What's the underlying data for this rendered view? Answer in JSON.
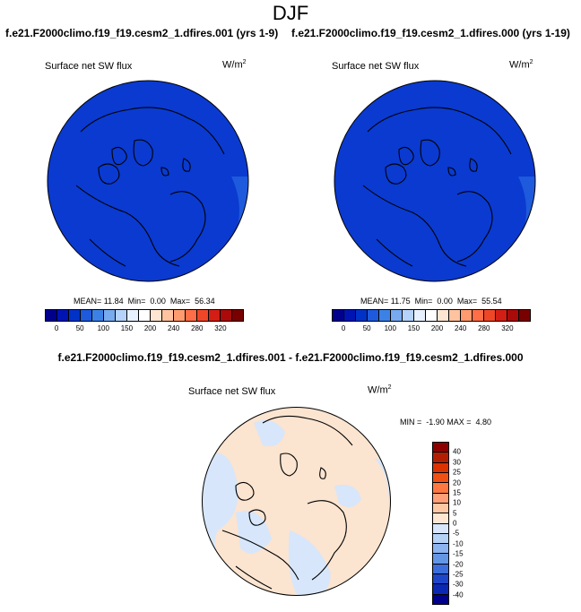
{
  "title": "DJF",
  "panels": [
    {
      "case_title": "f.e21.F2000climo.f19_f19.cesm2_1.dfires.001 (yrs 1-9)",
      "variable": "Surface net SW flux",
      "units": "W/m",
      "units_exp": "2",
      "stats": "MEAN= 11.84  Min=  0.00  Max=  56.34"
    },
    {
      "case_title": "f.e21.F2000climo.f19_f19.cesm2_1.dfires.000 (yrs 1-19)",
      "variable": "Surface net SW flux",
      "units": "W/m",
      "units_exp": "2",
      "stats": "MEAN= 11.75  Min=  0.00  Max=  55.54"
    }
  ],
  "colorbar_top": {
    "colors": [
      "#00008c",
      "#0014b4",
      "#0032c8",
      "#1e5adc",
      "#3c82e6",
      "#78aaf0",
      "#b4d2fa",
      "#e6f0ff",
      "#ffffff",
      "#ffe6d2",
      "#ffc3a0",
      "#ff9b6e",
      "#ff6e46",
      "#f04628",
      "#d21e14",
      "#aa0a0a",
      "#780000"
    ],
    "tick_labels": [
      "0",
      "50",
      "100",
      "150",
      "200",
      "240",
      "280",
      "320"
    ]
  },
  "difference": {
    "title": "f.e21.F2000climo.f19_f19.cesm2_1.dfires.001 - f.e21.F2000climo.f19_f19.cesm2_1.dfires.000",
    "variable": "Surface net SW flux",
    "units": "W/m",
    "units_exp": "2",
    "stats": "MIN =  -1.90 MAX =  4.80",
    "colorbar": {
      "colors": [
        "#8c0000",
        "#b41e00",
        "#dc3200",
        "#f05014",
        "#ff7841",
        "#ffa078",
        "#ffc8a5",
        "#ffe6d2",
        "#d7e6fa",
        "#b4d2f5",
        "#8cb4f0",
        "#6496e6",
        "#3c6edc",
        "#1e46c8",
        "#0a28b4",
        "#00008c"
      ],
      "tick_labels": [
        "40",
        "30",
        "25",
        "20",
        "15",
        "10",
        "5",
        "0",
        "-5",
        "-10",
        "-15",
        "-20",
        "-25",
        "-30",
        "-40"
      ]
    }
  },
  "map_colors": {
    "ocean_dark": "#0a3ad0",
    "ocean_light": "#1e5adc",
    "diff_positive": "#fbe4d0",
    "diff_negative": "#d7e6fa"
  }
}
